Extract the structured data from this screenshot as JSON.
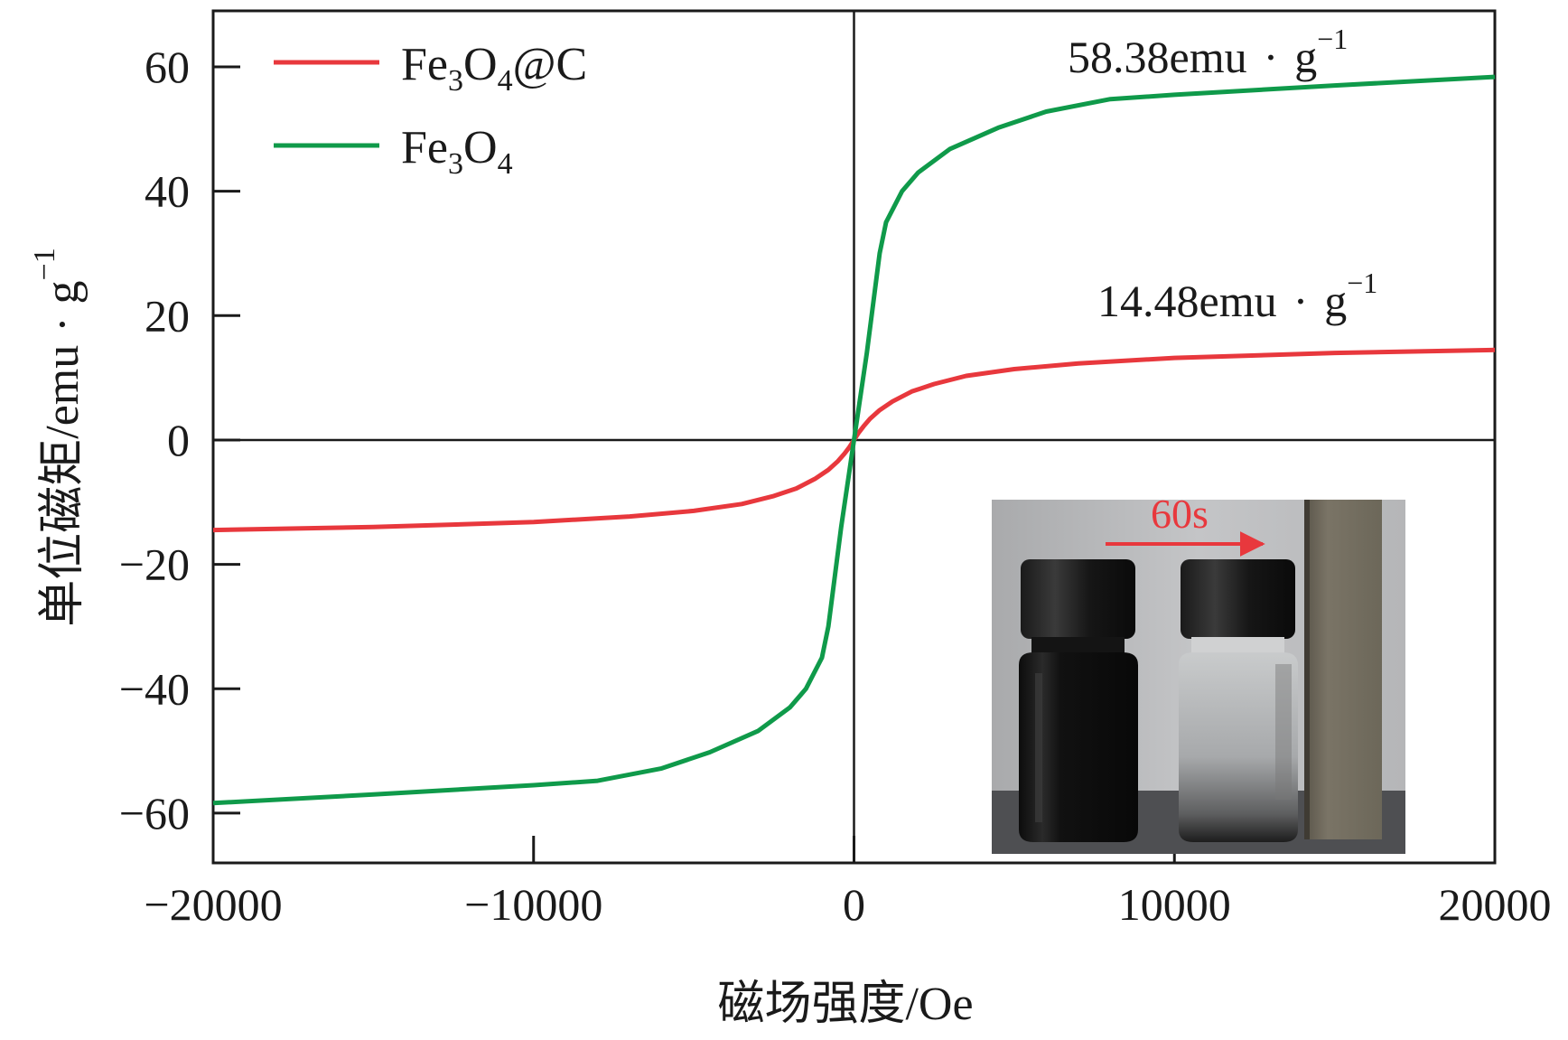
{
  "chart_data": {
    "type": "line",
    "xlabel": "磁场强度/Oe",
    "ylabel_main": "单位磁矩/emu",
    "ylabel_unit": "g",
    "ylabel_sup": "−1",
    "xlim": [
      -20000,
      20000
    ],
    "ylim": [
      -68,
      69
    ],
    "x_ticks": [
      -20000,
      -10000,
      0,
      10000,
      20000
    ],
    "x_tick_labels": [
      "−20000",
      "−10000",
      "0",
      "10000",
      "20000"
    ],
    "y_ticks": [
      -60,
      -40,
      -20,
      0,
      20,
      40,
      60
    ],
    "y_tick_labels": [
      "−60",
      "−40",
      "−20",
      "0",
      "20",
      "40",
      "60"
    ],
    "grid": false,
    "zero_lines": true,
    "legend_position": "top-left",
    "series": [
      {
        "name_base": "Fe",
        "name_sub1": "3",
        "name_mid": "O",
        "name_sub2": "4",
        "name_tail": "@C",
        "color": "#e8383d",
        "points": [
          [
            -20000,
            -14.48
          ],
          [
            -15000,
            -14.0
          ],
          [
            -10000,
            -13.2
          ],
          [
            -7000,
            -12.3
          ],
          [
            -5000,
            -11.4
          ],
          [
            -3500,
            -10.3
          ],
          [
            -2500,
            -9.0
          ],
          [
            -1800,
            -7.8
          ],
          [
            -1200,
            -6.2
          ],
          [
            -800,
            -4.8
          ],
          [
            -500,
            -3.4
          ],
          [
            -300,
            -2.2
          ],
          [
            -150,
            -1.2
          ],
          [
            0,
            0
          ],
          [
            150,
            1.2
          ],
          [
            300,
            2.2
          ],
          [
            500,
            3.4
          ],
          [
            800,
            4.8
          ],
          [
            1200,
            6.2
          ],
          [
            1800,
            7.8
          ],
          [
            2500,
            9.0
          ],
          [
            3500,
            10.3
          ],
          [
            5000,
            11.4
          ],
          [
            7000,
            12.3
          ],
          [
            10000,
            13.2
          ],
          [
            15000,
            14.0
          ],
          [
            20000,
            14.48
          ]
        ]
      },
      {
        "name_base": "Fe",
        "name_sub1": "3",
        "name_mid": "O",
        "name_sub2": "4",
        "name_tail": "",
        "color": "#0f9a4a",
        "points": [
          [
            -20000,
            -58.38
          ],
          [
            -15000,
            -57.0
          ],
          [
            -10000,
            -55.5
          ],
          [
            -8000,
            -54.8
          ],
          [
            -6000,
            -52.8
          ],
          [
            -4500,
            -50.2
          ],
          [
            -3000,
            -46.8
          ],
          [
            -2000,
            -43.0
          ],
          [
            -1500,
            -40.0
          ],
          [
            -1000,
            -35.0
          ],
          [
            -800,
            -30.0
          ],
          [
            -600,
            -22.0
          ],
          [
            -400,
            -14.0
          ],
          [
            -200,
            -7.0
          ],
          [
            0,
            0
          ],
          [
            200,
            7.0
          ],
          [
            400,
            14.0
          ],
          [
            600,
            22.0
          ],
          [
            800,
            30.0
          ],
          [
            1000,
            35.0
          ],
          [
            1500,
            40.0
          ],
          [
            2000,
            43.0
          ],
          [
            3000,
            46.8
          ],
          [
            4500,
            50.2
          ],
          [
            6000,
            52.8
          ],
          [
            8000,
            54.8
          ],
          [
            10000,
            55.5
          ],
          [
            15000,
            57.0
          ],
          [
            20000,
            58.38
          ]
        ]
      }
    ],
    "annotations": [
      {
        "value": "58.38emu",
        "unit": "g",
        "sup": "−1"
      },
      {
        "value": "14.48emu",
        "unit": "g",
        "sup": "−1"
      }
    ],
    "inset": {
      "label": "60s",
      "arrow_color": "#e8383d"
    }
  }
}
